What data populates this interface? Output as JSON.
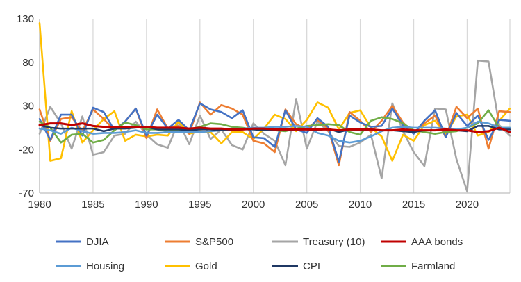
{
  "chart_data": {
    "type": "line",
    "title": "",
    "xlabel": "",
    "ylabel": "",
    "ylim": [
      -70,
      130
    ],
    "yticks": [
      -70,
      -20,
      30,
      80,
      130
    ],
    "xlim": [
      1980,
      2024
    ],
    "xticks": [
      1980,
      1985,
      1990,
      1995,
      2000,
      2005,
      2010,
      2015,
      2020
    ],
    "grid": "vertical",
    "legend_position": "bottom",
    "x": [
      1980,
      1981,
      1982,
      1983,
      1984,
      1985,
      1986,
      1987,
      1988,
      1989,
      1990,
      1991,
      1992,
      1993,
      1994,
      1995,
      1996,
      1997,
      1998,
      1999,
      2000,
      2001,
      2002,
      2003,
      2004,
      2005,
      2006,
      2007,
      2008,
      2009,
      2010,
      2011,
      2012,
      2013,
      2014,
      2015,
      2016,
      2017,
      2018,
      2019,
      2020,
      2021,
      2022,
      2023,
      2024
    ],
    "series": [
      {
        "name": "DJIA",
        "color": "#4472C4",
        "values": [
          15,
          -9,
          20,
          20,
          -4,
          28,
          23,
          2,
          12,
          27,
          -4,
          20,
          4,
          14,
          2,
          33,
          26,
          23,
          16,
          25,
          -6,
          -7,
          -17,
          25,
          3,
          -1,
          16,
          6,
          -34,
          19,
          11,
          6,
          7,
          27,
          8,
          -2,
          13,
          25,
          -6,
          22,
          7,
          19,
          -9,
          14,
          13
        ]
      },
      {
        "name": "S&P500",
        "color": "#ED7D31",
        "values": [
          26,
          -10,
          15,
          17,
          1,
          26,
          15,
          2,
          12,
          27,
          -7,
          26,
          4,
          7,
          -2,
          34,
          20,
          31,
          27,
          20,
          -10,
          -13,
          -23,
          26,
          9,
          3,
          14,
          4,
          -38,
          23,
          13,
          0,
          13,
          30,
          11,
          -1,
          10,
          19,
          -6,
          29,
          16,
          27,
          -19,
          24,
          23
        ]
      },
      {
        "name": "Treasury (10)",
        "color": "#A5A5A5",
        "values": [
          -2,
          29,
          10,
          -19,
          18,
          -26,
          -23,
          -4,
          -2,
          12,
          -3,
          -14,
          -18,
          12,
          -14,
          19,
          -8,
          3,
          -15,
          -20,
          10,
          -2,
          -10,
          -38,
          38,
          -19,
          12,
          1,
          -16,
          -17,
          -12,
          -3,
          -53,
          33,
          1,
          -23,
          -39,
          27,
          26,
          -31,
          -68,
          82,
          81,
          8,
          -4
        ]
      },
      {
        "name": "AAA bonds",
        "color": "#C00000",
        "values": [
          8,
          10,
          10,
          8,
          10,
          7,
          6,
          6,
          6,
          6,
          6,
          5,
          5,
          5,
          4,
          5,
          4,
          4,
          3,
          3,
          4,
          4,
          3,
          3,
          3,
          3,
          3,
          3,
          2,
          3,
          3,
          3,
          2,
          2,
          3,
          2,
          2,
          2,
          3,
          2,
          2,
          0,
          1,
          5,
          0
        ]
      },
      {
        "name": "Housing",
        "color": "#5B9BD5",
        "values": [
          4,
          2,
          -2,
          5,
          1,
          -2,
          -1,
          -1,
          0,
          2,
          -1,
          -1,
          0,
          0,
          0,
          0,
          1,
          2,
          4,
          4,
          5,
          5,
          6,
          6,
          7,
          6,
          -1,
          -4,
          -10,
          -12,
          -10,
          -5,
          1,
          5,
          6,
          5,
          5,
          5,
          4,
          3,
          5,
          12,
          10,
          5,
          5
        ]
      },
      {
        "name": "Gold",
        "color": "#FFC000",
        "values": [
          125,
          -33,
          -30,
          24,
          -12,
          2,
          15,
          24,
          -10,
          -3,
          -5,
          -3,
          -4,
          12,
          -2,
          1,
          0,
          -13,
          0,
          0,
          -8,
          4,
          20,
          15,
          1,
          14,
          34,
          28,
          3,
          22,
          25,
          5,
          -5,
          -33,
          -3,
          -10,
          8,
          13,
          -3,
          18,
          20,
          -4,
          0,
          13,
          27
        ]
      },
      {
        "name": "CPI",
        "color": "#1F3864",
        "values": [
          8,
          5,
          4,
          4,
          4,
          4,
          1,
          4,
          4,
          5,
          6,
          3,
          3,
          3,
          2,
          3,
          3,
          2,
          2,
          3,
          3,
          2,
          2,
          2,
          3,
          3,
          2,
          4,
          0,
          3,
          2,
          3,
          2,
          2,
          1,
          0,
          2,
          2,
          2,
          2,
          1,
          7,
          7,
          3,
          3
        ]
      },
      {
        "name": "Farmland",
        "color": "#70AD47",
        "values": [
          12,
          5,
          -12,
          -3,
          -2,
          -12,
          -9,
          2,
          11,
          8,
          3,
          3,
          1,
          2,
          3,
          6,
          10,
          9,
          6,
          5,
          3,
          3,
          2,
          1,
          4,
          7,
          8,
          9,
          8,
          0,
          -3,
          13,
          17,
          15,
          10,
          2,
          0,
          -2,
          0,
          1,
          5,
          10,
          25,
          5,
          5
        ]
      }
    ]
  }
}
